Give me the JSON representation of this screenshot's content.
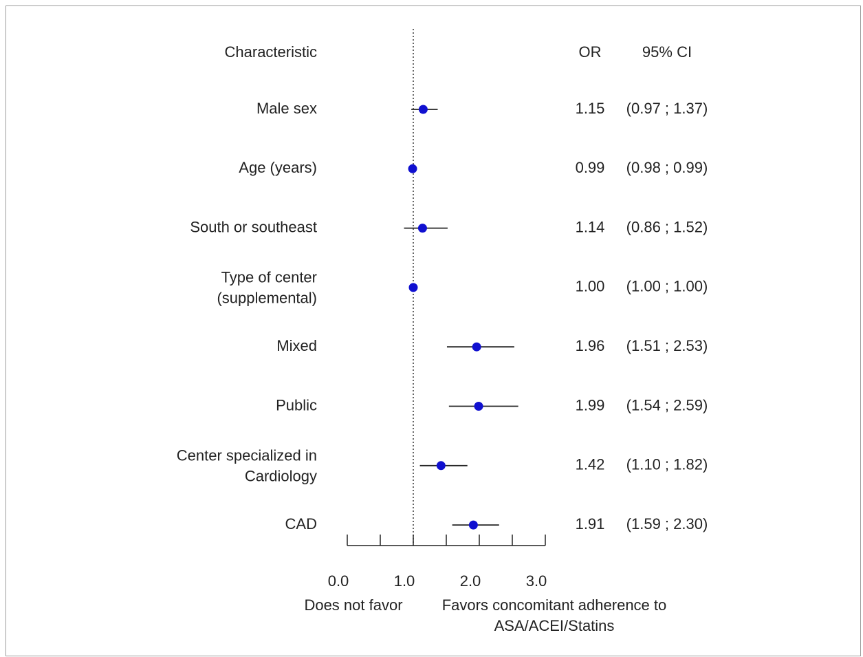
{
  "chart_data": {
    "type": "forest",
    "header": {
      "characteristic": "Characteristic",
      "or": "OR",
      "ci": "95% CI"
    },
    "rows": [
      {
        "label": [
          "Male sex"
        ],
        "or": 1.15,
        "lower": 0.97,
        "upper": 1.37,
        "or_text": "1.15",
        "ci_text": "(0.97 ; 1.37)"
      },
      {
        "label": [
          "Age (years)"
        ],
        "or": 0.99,
        "lower": 0.98,
        "upper": 0.99,
        "or_text": "0.99",
        "ci_text": "(0.98 ; 0.99)"
      },
      {
        "label": [
          "South or southeast"
        ],
        "or": 1.14,
        "lower": 0.86,
        "upper": 1.52,
        "or_text": "1.14",
        "ci_text": "(0.86 ; 1.52)"
      },
      {
        "label": [
          "Type of center",
          "(supplemental)"
        ],
        "or": 1.0,
        "lower": 1.0,
        "upper": 1.0,
        "or_text": "1.00",
        "ci_text": "(1.00 ; 1.00)"
      },
      {
        "label": [
          "Mixed"
        ],
        "or": 1.96,
        "lower": 1.51,
        "upper": 2.53,
        "or_text": "1.96",
        "ci_text": "(1.51 ; 2.53)"
      },
      {
        "label": [
          "Public"
        ],
        "or": 1.99,
        "lower": 1.54,
        "upper": 2.59,
        "or_text": "1.99",
        "ci_text": "(1.54 ; 2.59)"
      },
      {
        "label": [
          "Center specialized in",
          "Cardiology"
        ],
        "or": 1.42,
        "lower": 1.1,
        "upper": 1.82,
        "or_text": "1.42",
        "ci_text": "(1.10 ; 1.82)"
      },
      {
        "label": [
          "CAD"
        ],
        "or": 1.91,
        "lower": 1.59,
        "upper": 2.3,
        "or_text": "1.91",
        "ci_text": "(1.59 ; 2.30)"
      }
    ],
    "xlim": [
      0,
      3
    ],
    "reference_line": 1.0,
    "major_ticks": [
      0,
      1,
      2,
      3
    ],
    "minor_ticks": [
      0.5,
      1.5,
      2.5
    ],
    "tick_labels": [
      "0.0",
      "1.0",
      "2.0",
      "3.0"
    ],
    "left_note": "Does not favor",
    "right_note": [
      "Favors concomitant adherence to",
      "ASA/ACEI/Statins"
    ],
    "point_color": "#1010d0",
    "line_color": "#222222"
  }
}
